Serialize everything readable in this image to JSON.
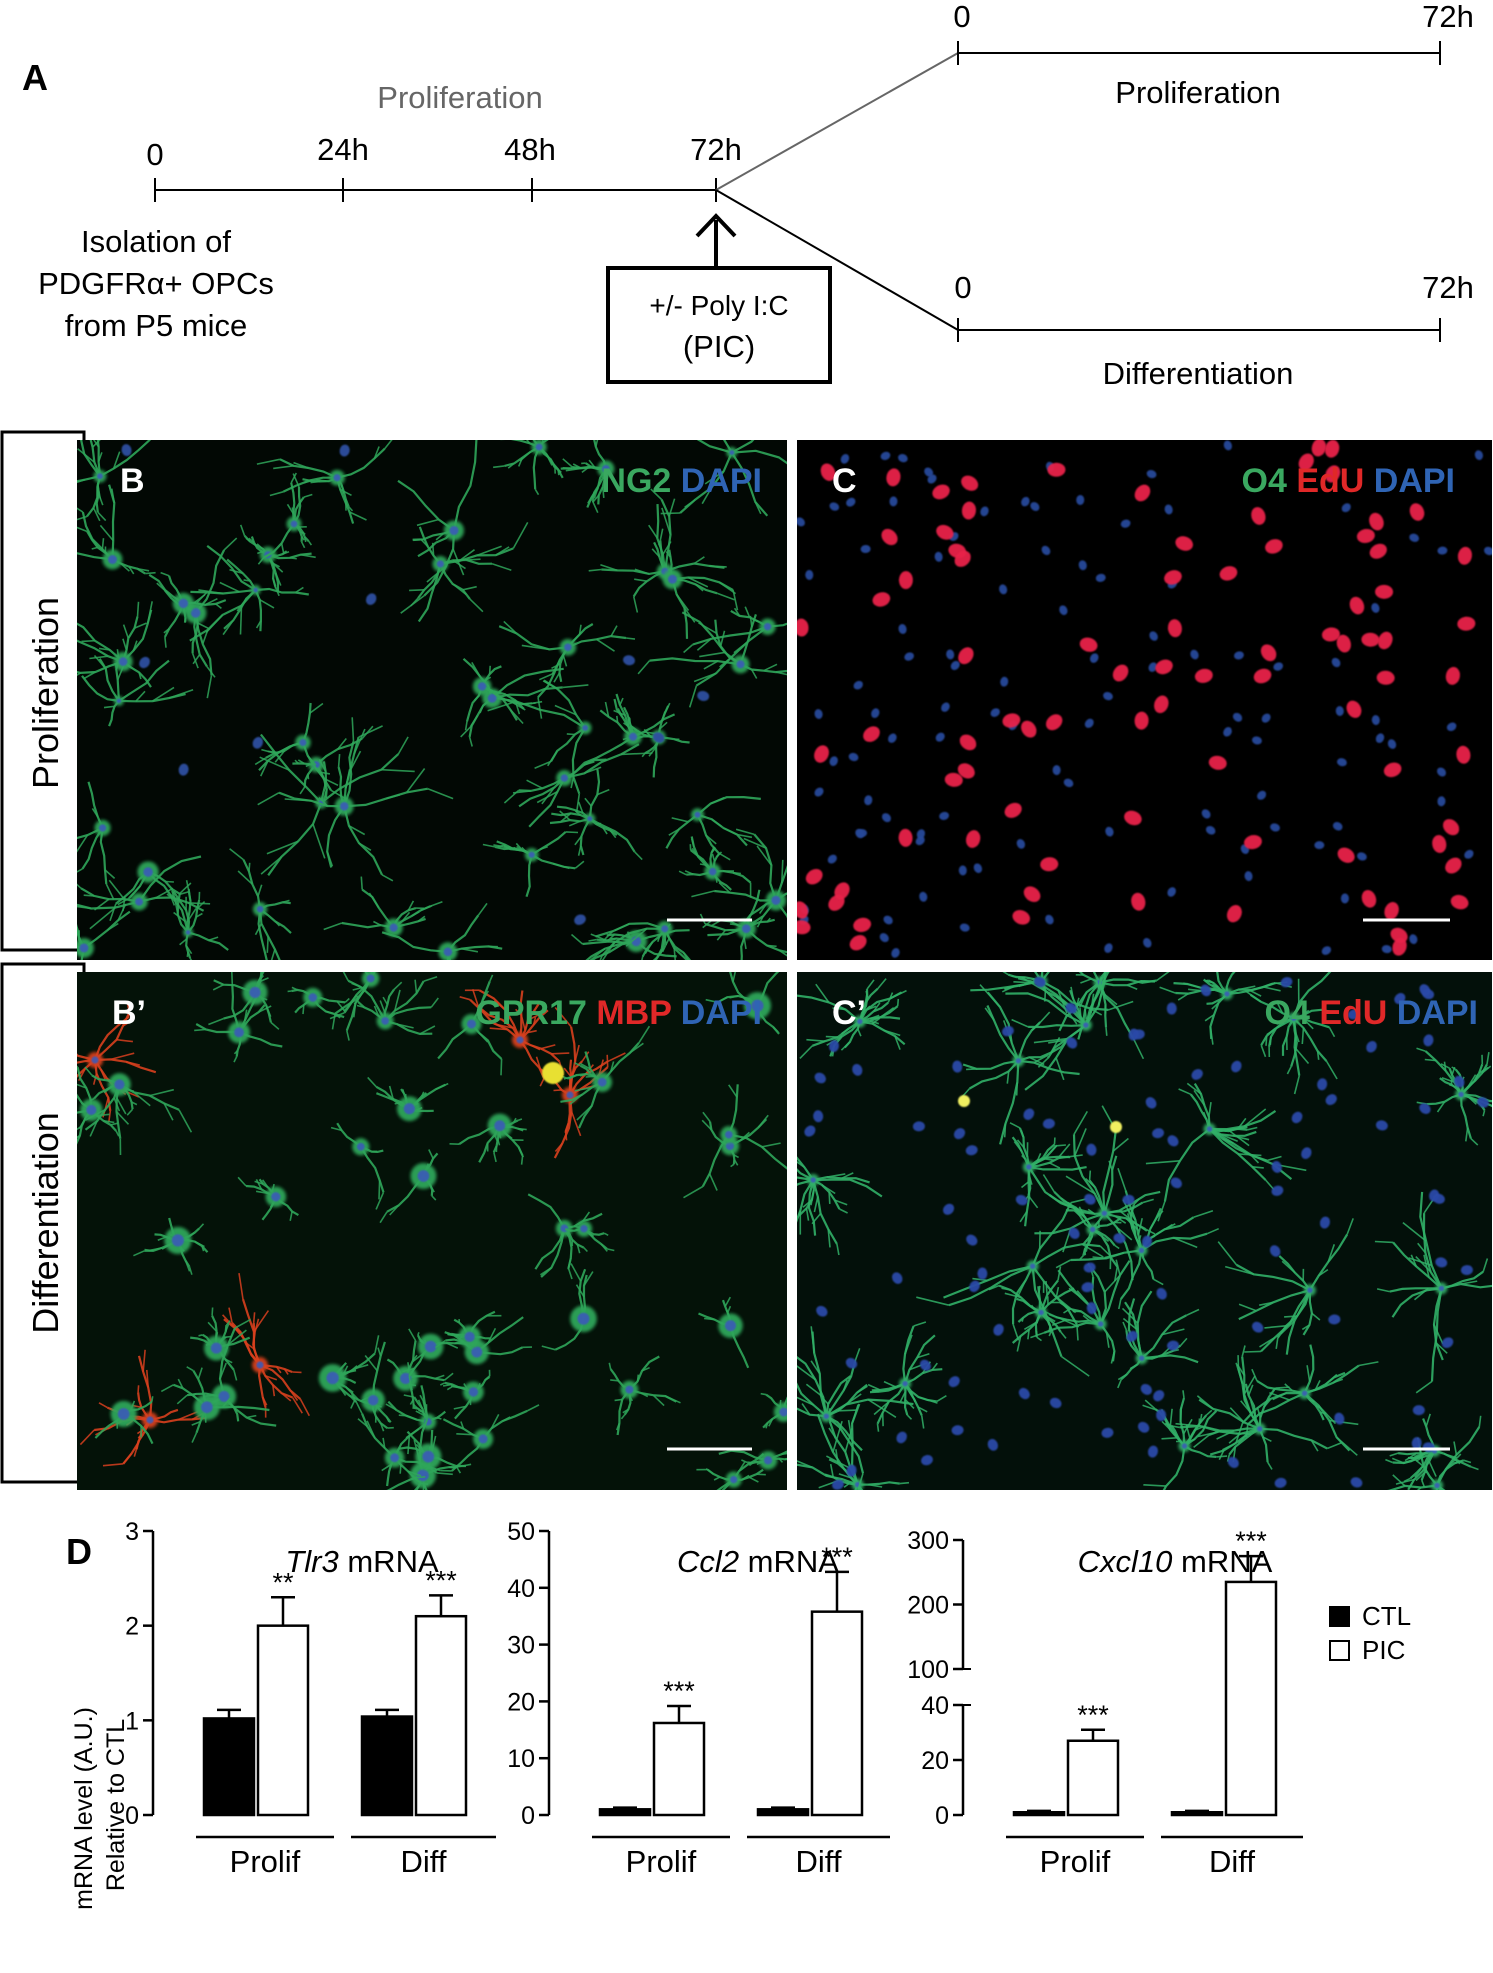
{
  "colors": {
    "green": "#3aa860",
    "red": "#e02828",
    "blue": "#2f64b4",
    "grey": "#666666"
  },
  "panel_a": {
    "letter": "A",
    "main_label": "Proliferation",
    "ticks": [
      "0",
      "24h",
      "48h",
      "72h"
    ],
    "isolation_lines": [
      "Isolation of",
      "PDGFRα+ OPCs",
      "from P5 mice"
    ],
    "treatment_lines": [
      "+/- Poly I:C",
      "(PIC)"
    ],
    "branch_top": {
      "start": "0",
      "end": "72h",
      "label": "Proliferation"
    },
    "branch_bottom": {
      "start": "0",
      "end": "72h",
      "label": "Differentiation"
    }
  },
  "row_labels": {
    "top": "Proliferation",
    "bottom": "Differentiation"
  },
  "panels": {
    "b": {
      "letter": "B",
      "stains": [
        {
          "text": "NG2",
          "color": "green"
        },
        {
          "text": "DAPI",
          "color": "blue"
        }
      ]
    },
    "c": {
      "letter": "C",
      "stains": [
        {
          "text": "O4",
          "color": "green"
        },
        {
          "text": "EdU",
          "color": "red"
        },
        {
          "text": "DAPI",
          "color": "blue"
        }
      ]
    },
    "bp": {
      "letter": "B’",
      "stains": [
        {
          "text": "GPR17",
          "color": "green"
        },
        {
          "text": "MBP",
          "color": "red"
        },
        {
          "text": "DAPI",
          "color": "blue"
        }
      ]
    },
    "cp": {
      "letter": "C’",
      "stains": [
        {
          "text": "O4",
          "color": "green"
        },
        {
          "text": "EdU",
          "color": "red"
        },
        {
          "text": "DAPI",
          "color": "blue"
        }
      ]
    }
  },
  "panel_d": {
    "letter": "D",
    "ylabel_lines": [
      "mRNA level (A.U.)",
      "Relative to CTL"
    ],
    "legend": [
      "CTL",
      "PIC"
    ]
  },
  "chart_data": [
    {
      "type": "bar",
      "title_italic": "Tlr3",
      "title_rest": " mRNA",
      "groups": [
        "Prolif",
        "Diff"
      ],
      "series": [
        {
          "name": "CTL",
          "values": [
            1.02,
            1.04
          ],
          "errors": [
            0.09,
            0.07
          ]
        },
        {
          "name": "PIC",
          "values": [
            2.0,
            2.1
          ],
          "errors": [
            0.3,
            0.22
          ]
        }
      ],
      "significance": [
        "",
        "**",
        "",
        "***"
      ],
      "ylim": [
        0,
        3
      ],
      "yticks": [
        "0",
        "1",
        "2",
        "3"
      ]
    },
    {
      "type": "bar",
      "title_italic": "Ccl2",
      "title_rest": " mRNA",
      "groups": [
        "Prolif",
        "Diff"
      ],
      "series": [
        {
          "name": "CTL",
          "values": [
            1,
            1
          ],
          "errors": [
            0.3,
            0.3
          ]
        },
        {
          "name": "PIC",
          "values": [
            16.2,
            35.8
          ],
          "errors": [
            3,
            7
          ]
        }
      ],
      "significance": [
        "",
        "***",
        "",
        "***"
      ],
      "ylim": [
        0,
        50
      ],
      "yticks": [
        "0",
        "10",
        "20",
        "30",
        "40",
        "50"
      ]
    },
    {
      "type": "bar",
      "title_italic": "Cxcl10",
      "title_rest": " mRNA",
      "groups": [
        "Prolif",
        "Diff"
      ],
      "series": [
        {
          "name": "CTL",
          "values": [
            1,
            1
          ],
          "errors": [
            0.5,
            0.5
          ]
        },
        {
          "name": "PIC",
          "values": [
            27,
            235
          ],
          "errors": [
            4,
            40
          ]
        }
      ],
      "significance": [
        "",
        "***",
        "",
        "***"
      ],
      "broken_axis": true,
      "ylim": [
        0,
        300
      ],
      "yticks": [
        "0",
        "20",
        "40",
        "100",
        "200",
        "300"
      ]
    }
  ]
}
